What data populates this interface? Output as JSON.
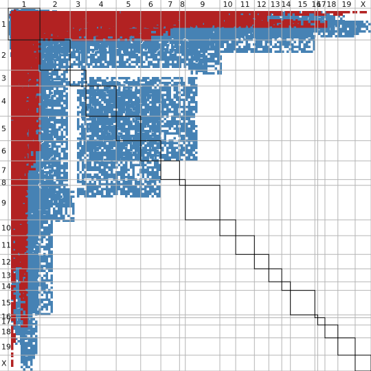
{
  "chart_data": {
    "type": "heatmap",
    "title": "",
    "xlabel": "",
    "ylabel": "",
    "grid": true,
    "chromosomes": [
      "1",
      "2",
      "3",
      "4",
      "5",
      "6",
      "7",
      "8",
      "9",
      "10",
      "11",
      "12",
      "13",
      "14",
      "15",
      "16",
      "17",
      "18",
      "19",
      "X"
    ],
    "lengths": [
      44,
      42,
      22,
      42,
      34,
      28,
      26,
      8,
      48,
      22,
      26,
      20,
      18,
      12,
      34,
      4,
      10,
      18,
      24,
      22
    ],
    "colors": {
      "blue": "#4682b4",
      "red": "#b22222",
      "grid": "#b4b4b4",
      "diagonal": "#000000"
    },
    "blue_regions": [
      [
        1,
        1,
        2,
        43
      ],
      [
        2,
        45,
        2,
        7
      ],
      [
        3,
        64,
        37,
        8
      ],
      [
        4,
        2,
        61,
        37
      ],
      [
        2,
        6,
        105,
        18
      ],
      [
        2,
        6,
        130,
        38
      ],
      [
        10,
        33,
        74,
        17
      ],
      [
        9,
        94,
        3,
        16
      ],
      [
        26,
        128,
        36,
        18
      ],
      [
        44,
        262,
        53,
        48
      ],
      [
        7,
        14,
        56,
        17
      ],
      [
        12,
        35,
        72,
        18
      ],
      [
        9,
        22,
        206,
        28
      ],
      [
        100,
        118,
        122,
        158
      ],
      [
        38,
        106,
        168,
        8
      ],
      [
        20,
        6,
        181,
        16
      ],
      [
        18,
        7,
        199,
        29
      ],
      [
        42,
        10,
        170,
        28
      ],
      [
        12,
        17,
        225,
        28
      ],
      [
        28,
        38,
        259,
        49
      ],
      [
        14,
        16,
        327,
        27
      ],
      [
        8,
        16,
        412,
        28
      ],
      [
        2,
        22,
        432,
        21
      ],
      [
        14,
        12,
        401,
        18
      ],
      [
        34,
        30,
        414,
        36
      ],
      [
        16,
        14,
        424,
        15
      ],
      [
        14,
        10,
        476,
        18
      ],
      [
        12,
        14,
        456,
        18
      ],
      [
        24,
        18,
        488,
        26
      ],
      [
        20,
        18,
        518,
        19
      ],
      [
        52,
        6,
        134,
        48
      ],
      [
        8,
        10,
        378,
        16
      ],
      [
        4,
        4,
        30,
        10
      ],
      [
        6,
        8,
        230,
        6
      ],
      [
        20,
        4,
        448,
        18
      ],
      [
        2,
        4,
        380,
        10
      ],
      [
        4,
        6,
        184,
        4
      ],
      [
        18,
        5,
        397,
        6
      ]
    ],
    "red_regions": [
      [
        12,
        30,
        196,
        18
      ],
      [
        10,
        20,
        167,
        22
      ],
      [
        16,
        4,
        130,
        12
      ],
      [
        26,
        4,
        270,
        15
      ],
      [
        16,
        8,
        200,
        10
      ],
      [
        14,
        10,
        334,
        18
      ],
      [
        12,
        12,
        325,
        4
      ],
      [
        12,
        16,
        412,
        10
      ],
      [
        6,
        18,
        460,
        12
      ],
      [
        12,
        12,
        226,
        28
      ],
      [
        14,
        6,
        65,
        24
      ],
      [
        4,
        4,
        518,
        5
      ],
      [
        6,
        10,
        372,
        14
      ],
      [
        2,
        8,
        216,
        4
      ],
      [
        6,
        4,
        100,
        12
      ],
      [
        4,
        6,
        112,
        6
      ],
      [
        6,
        4,
        366,
        14
      ],
      [
        4,
        4,
        14,
        4
      ],
      [
        6,
        4,
        46,
        12
      ],
      [
        4,
        4,
        484,
        6
      ]
    ]
  }
}
